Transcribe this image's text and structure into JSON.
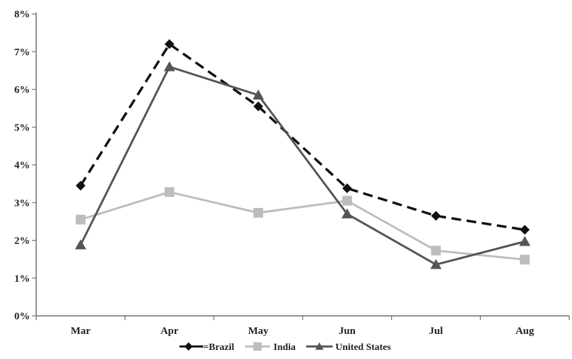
{
  "chart_data": {
    "type": "line",
    "title": "",
    "xlabel": "",
    "ylabel": "",
    "categories": [
      "Mar",
      "Apr",
      "May",
      "Jun",
      "Jul",
      "Aug"
    ],
    "y_ticks": [
      "0%",
      "1%",
      "2%",
      "3%",
      "4%",
      "5%",
      "6%",
      "7%",
      "8%"
    ],
    "ylim": [
      0,
      8
    ],
    "grid": false,
    "legend_position": "bottom",
    "series": [
      {
        "name": "Brazil",
        "legend_label": "=Brazil",
        "values": [
          3.45,
          7.2,
          5.55,
          3.38,
          2.65,
          2.28
        ],
        "color": "#111111",
        "line_style": "dashed",
        "marker": "diamond"
      },
      {
        "name": "India",
        "legend_label": "India",
        "values": [
          2.55,
          3.28,
          2.73,
          3.05,
          1.73,
          1.49
        ],
        "color": "#bdbdbd",
        "line_style": "solid",
        "marker": "square"
      },
      {
        "name": "United States",
        "legend_label": "United States",
        "values": [
          1.88,
          6.6,
          5.85,
          2.7,
          1.36,
          1.97
        ],
        "color": "#555555",
        "line_style": "solid",
        "marker": "triangle"
      }
    ]
  }
}
